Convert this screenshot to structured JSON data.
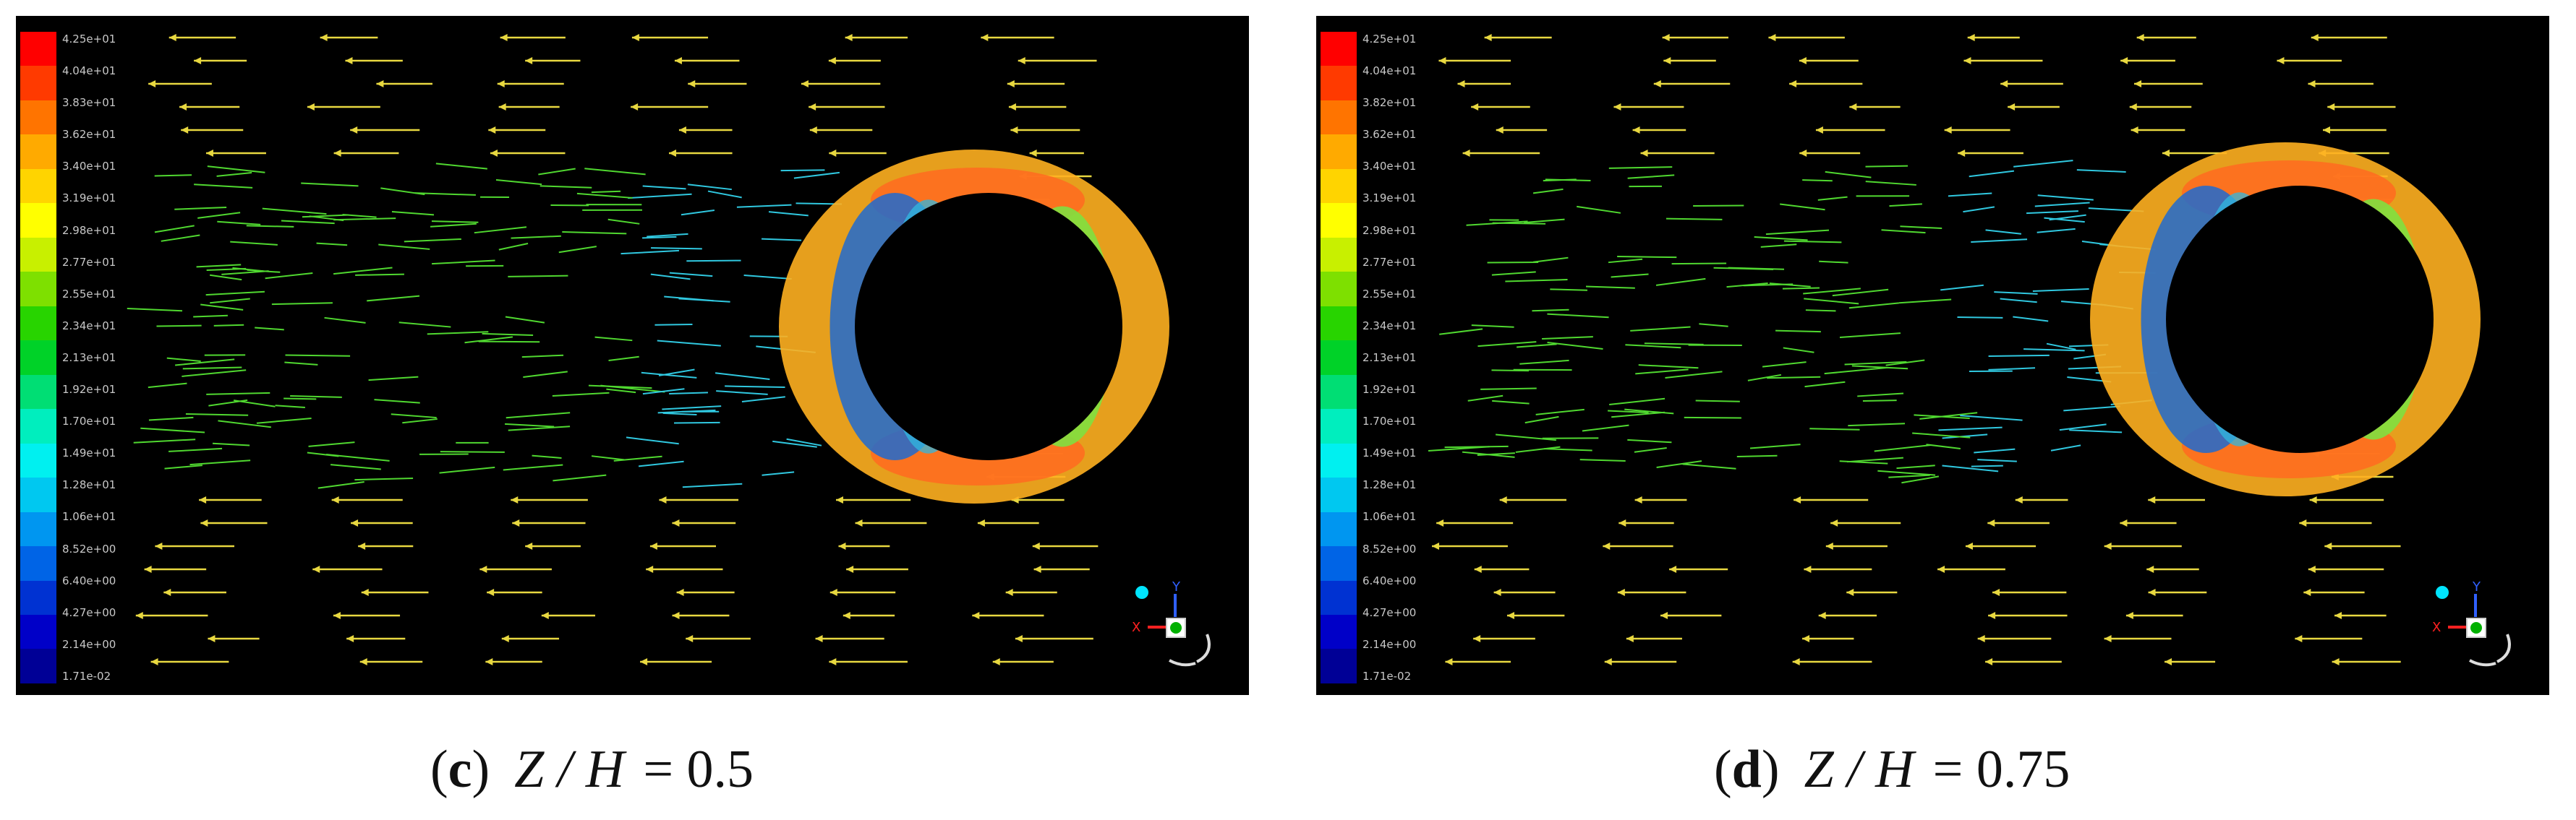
{
  "colormap": [
    "#ff0000",
    "#ff3a00",
    "#ff7400",
    "#ffaa00",
    "#ffd400",
    "#ffff00",
    "#c8f000",
    "#7ee000",
    "#28d400",
    "#00d228",
    "#00de74",
    "#00eebe",
    "#00f0f0",
    "#00c8f0",
    "#0096f0",
    "#0064e6",
    "#0032d2",
    "#0000c8",
    "#000096"
  ],
  "panels": [
    {
      "legend": [
        "4.25e+01",
        "4.04e+01",
        "3.83e+01",
        "3.62e+01",
        "3.40e+01",
        "3.19e+01",
        "2.98e+01",
        "2.77e+01",
        "2.55e+01",
        "2.34e+01",
        "2.13e+01",
        "1.92e+01",
        "1.70e+01",
        "1.49e+01",
        "1.28e+01",
        "1.06e+01",
        "8.52e+00",
        "6.40e+00",
        "4.27e+00",
        "2.14e+00",
        "1.71e-02"
      ],
      "caption": {
        "letter": "c",
        "variable": "Z / H",
        "value": "= 0.5"
      }
    },
    {
      "legend": [
        "4.25e+01",
        "4.04e+01",
        "3.82e+01",
        "3.62e+01",
        "3.40e+01",
        "3.19e+01",
        "2.98e+01",
        "2.77e+01",
        "2.55e+01",
        "2.34e+01",
        "2.13e+01",
        "1.92e+01",
        "1.70e+01",
        "1.49e+01",
        "1.28e+01",
        "1.06e+01",
        "8.52e+00",
        "6.40e+00",
        "4.27e+00",
        "2.14e+00",
        "1.71e-02"
      ],
      "caption": {
        "letter": "d",
        "variable": "Z / H",
        "value": "= 0.75"
      }
    }
  ],
  "triad_axes": {
    "x": "X",
    "y": "Y"
  }
}
